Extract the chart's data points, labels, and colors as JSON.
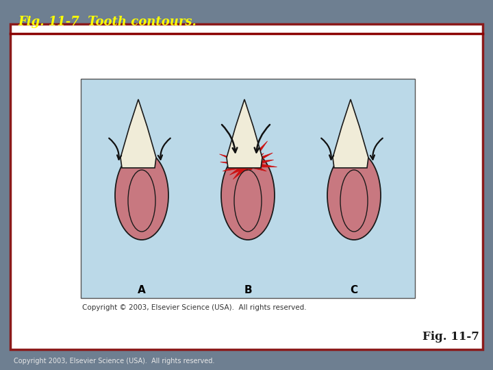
{
  "title": "Fig. 11-7  Tooth contours.",
  "title_color": "#FFFF00",
  "title_fontsize": 13,
  "fig_label": "Fig. 11-7",
  "fig_label_color": "#1A1A1A",
  "copyright_text": "Copyright 2003, Elsevier Science (USA).  All rights reserved.",
  "copyright_fontsize": 7,
  "inner_copyright": "Copyright © 2003, Elsevier Science (USA).  All rights reserved.",
  "inner_copyright_fontsize": 7.5,
  "background_outer": "#6E7F91",
  "background_inner": "#FFFFFF",
  "background_diagram": "#BBD9E8",
  "border_title_line_color": "#8B0000",
  "gum_color": "#C87880",
  "tooth_color": "#F0ECD8",
  "outline_color": "#1A1A1A",
  "red_color": "#CC1111",
  "arrow_color": "#111111",
  "label_fontsize": 11,
  "fig_label_fontsize": 12
}
